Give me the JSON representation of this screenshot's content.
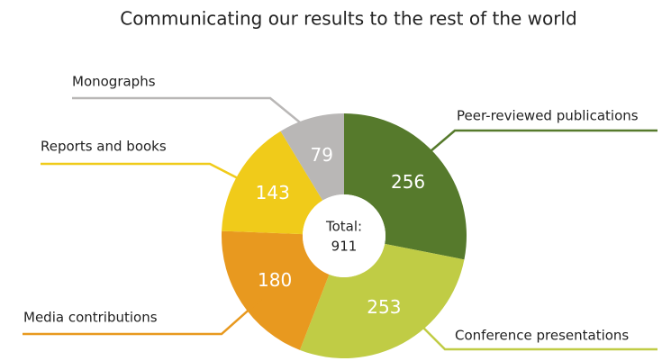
{
  "chart_data": {
    "type": "donut",
    "title": "Communicating our results to the rest of the world",
    "categories": [
      "Peer-reviewed publications",
      "Conference presentations",
      "Media contributions",
      "Reports and books",
      "Monographs"
    ],
    "values": [
      256,
      253,
      180,
      143,
      79
    ],
    "colors": [
      "#567a2c",
      "#c0cc45",
      "#e8991f",
      "#f0cb1a",
      "#b9b7b6"
    ],
    "center_label": "Total:",
    "total": 911
  }
}
